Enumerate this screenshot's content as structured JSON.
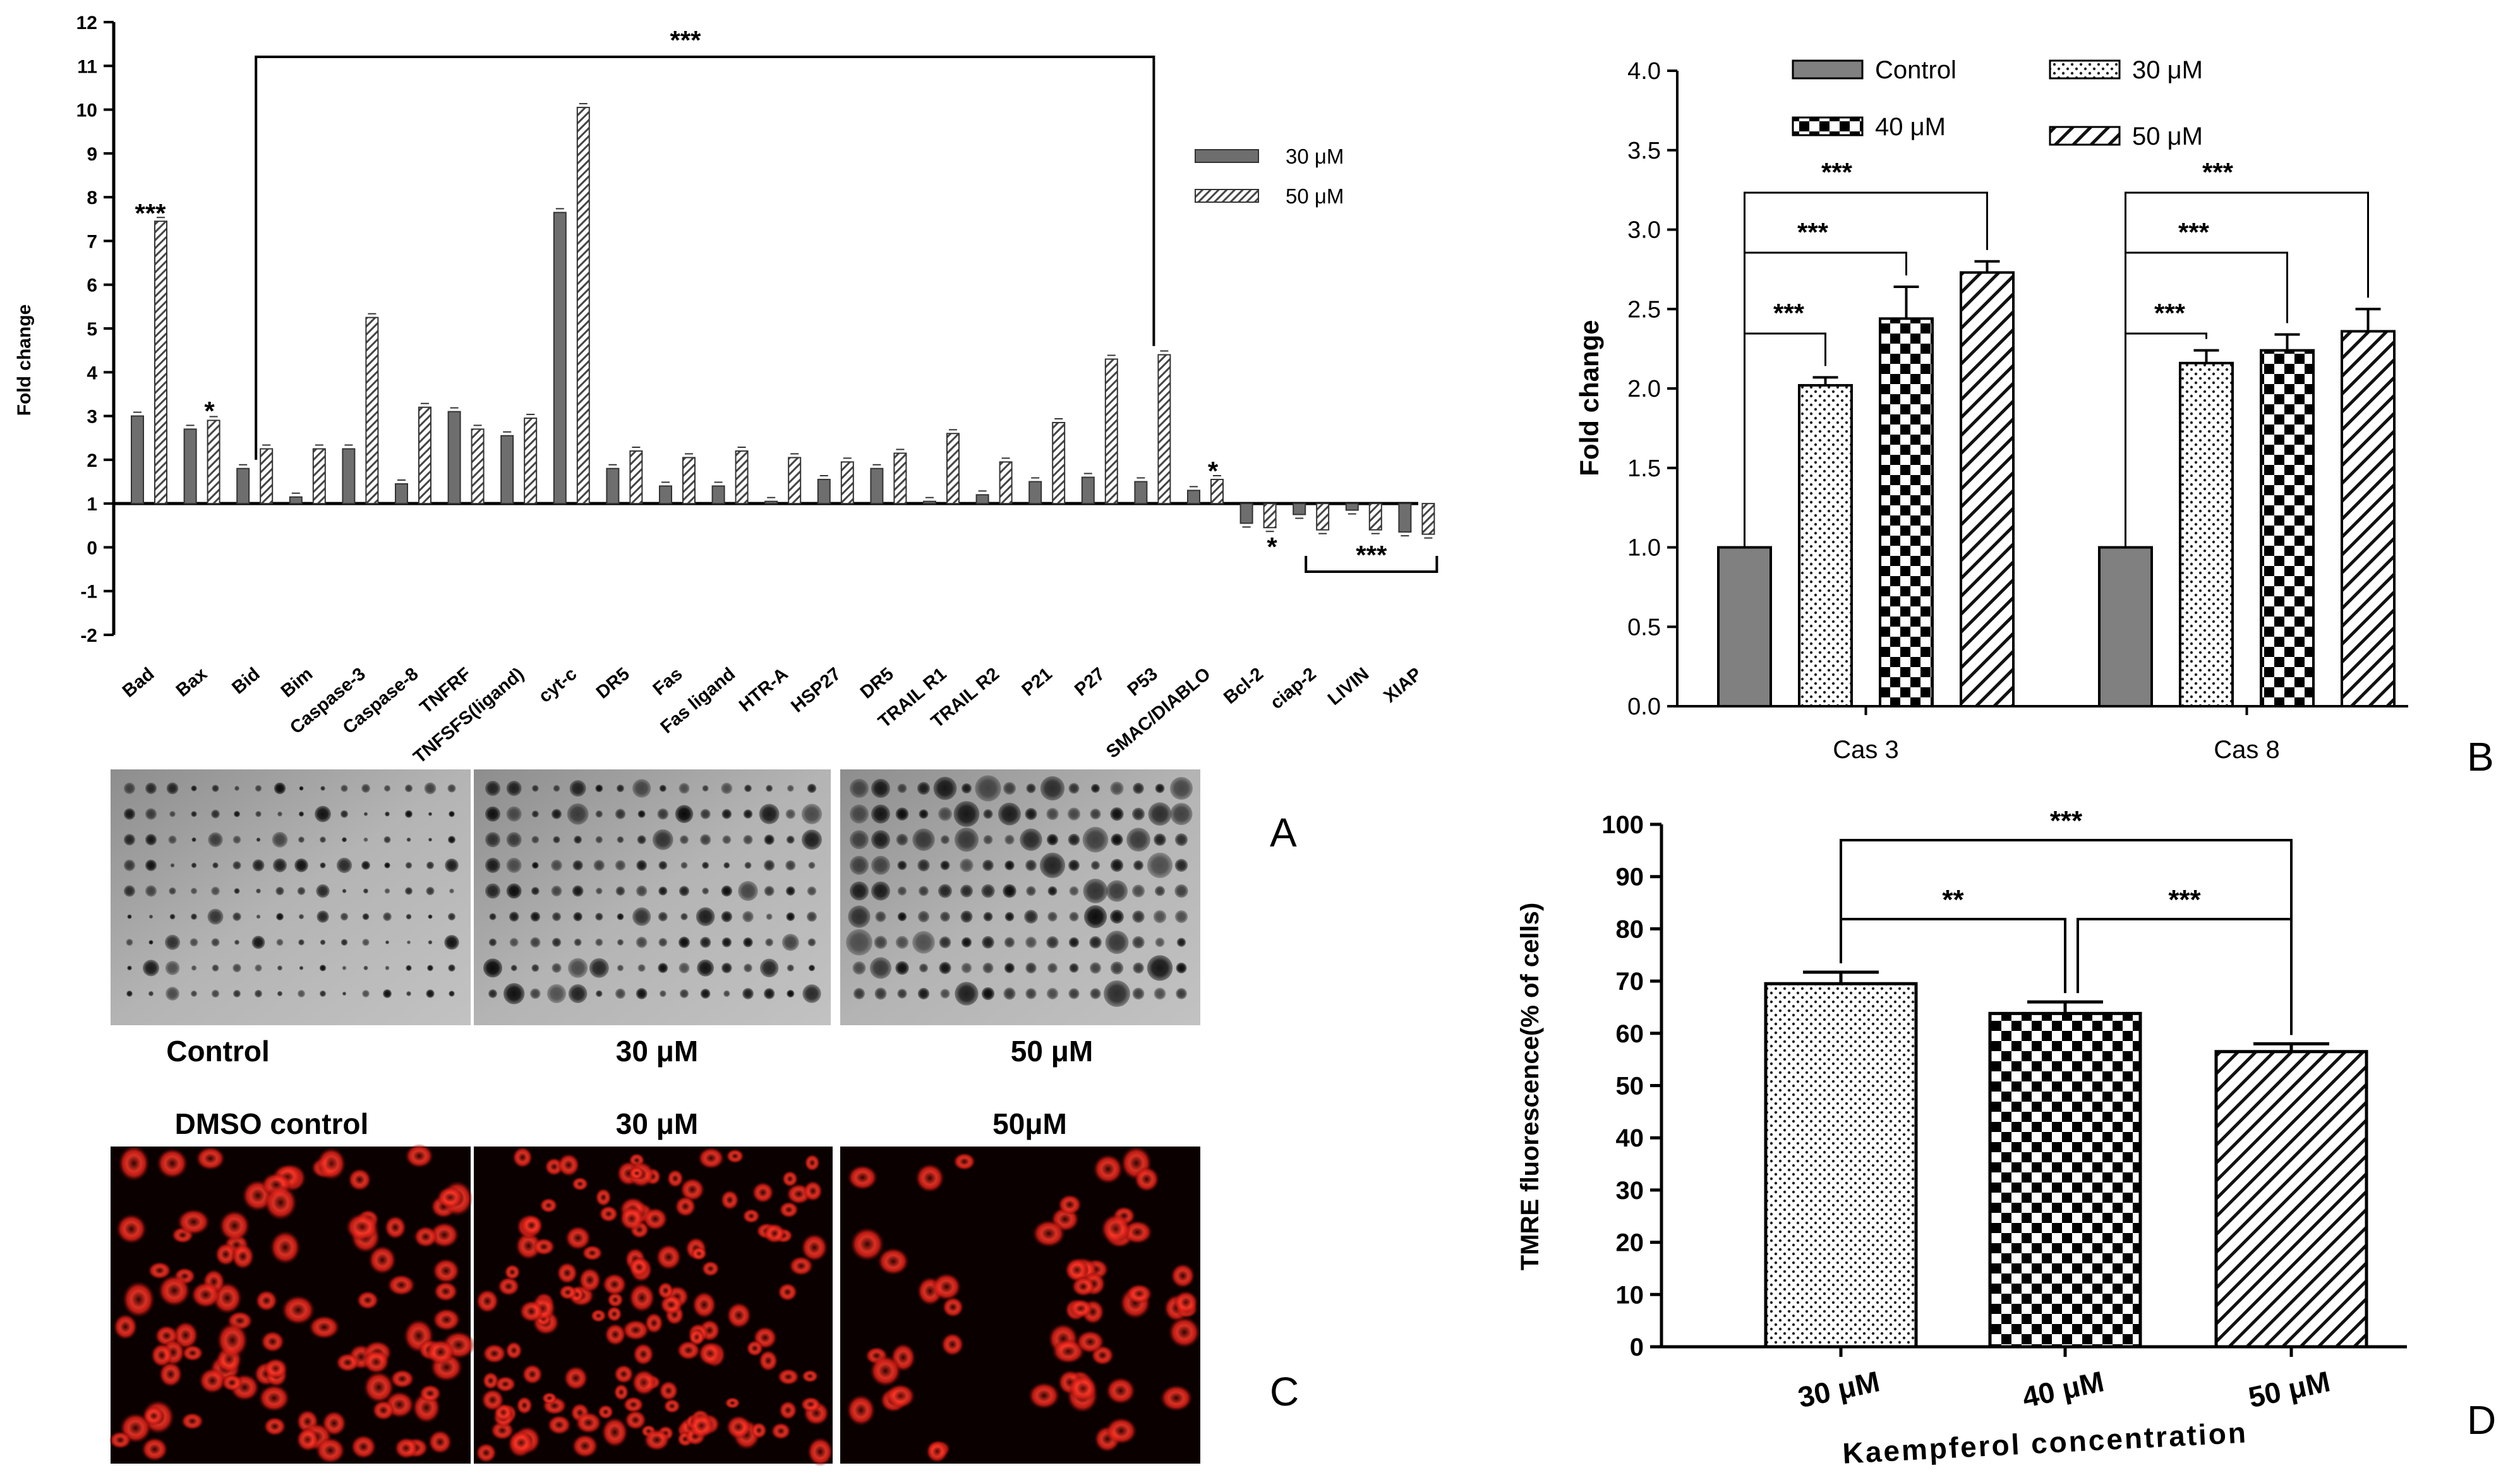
{
  "panel_letters": [
    "A",
    "B",
    "C",
    "D"
  ],
  "blot_labels": [
    "Control",
    "30 μM",
    "50 μM"
  ],
  "fluor_labels": [
    "DMSO control",
    "30 μM",
    "50μM"
  ],
  "chart_data": [
    {
      "id": "A",
      "type": "bar",
      "ylabel": "Fold change",
      "ylim": [
        -2,
        12
      ],
      "yticks": [
        -2,
        -1,
        0,
        1,
        2,
        3,
        4,
        5,
        6,
        7,
        8,
        9,
        10,
        11,
        12
      ],
      "baseline": 1,
      "categories": [
        "Bad",
        "Bax",
        "Bid",
        "Bim",
        "Caspase-3",
        "Caspase-8",
        "TNFRF",
        "TNFSFS(ligand)",
        "cyt-c",
        "DR5",
        "Fas",
        "Fas ligand",
        "HTR-A",
        "HSP27",
        "DR5",
        "TRAIL R1",
        "TRAIL R2",
        "P21",
        "P27",
        "P53",
        "SMAC/DIABLO",
        "Bcl-2",
        "ciap-2",
        "LIVIN",
        "XIAP"
      ],
      "series": [
        {
          "name": "30 μM",
          "values": [
            3.0,
            2.7,
            1.8,
            1.15,
            2.25,
            1.45,
            3.1,
            2.55,
            7.65,
            1.8,
            1.4,
            1.4,
            1.05,
            1.55,
            1.8,
            1.05,
            1.2,
            1.5,
            1.6,
            1.5,
            1.3,
            0.55,
            0.75,
            0.85,
            0.35
          ]
        },
        {
          "name": "50 μM",
          "values": [
            7.45,
            2.9,
            2.25,
            2.25,
            5.25,
            3.2,
            2.7,
            2.95,
            10.05,
            2.2,
            2.05,
            2.2,
            2.05,
            1.95,
            2.15,
            2.6,
            1.95,
            2.85,
            4.3,
            4.4,
            1.55,
            0.45,
            0.4,
            0.4,
            0.3
          ]
        }
      ],
      "annotations": [
        {
          "text": "***",
          "bracket": [
            "Bid",
            "P53"
          ]
        },
        {
          "text": "***",
          "over": "Bad"
        },
        {
          "text": "*",
          "over": "Bax"
        },
        {
          "text": "*",
          "over": "SMAC/DIABLO"
        },
        {
          "text": "*",
          "under": "Bcl-2"
        },
        {
          "text": "***",
          "bracket_below": [
            "ciap-2",
            "XIAP"
          ]
        }
      ]
    },
    {
      "id": "B",
      "type": "bar",
      "ylabel": "Fold change",
      "ylim": [
        0,
        4
      ],
      "yticks": [
        "0.0",
        "0.5",
        "1.0",
        "1.5",
        "2.0",
        "2.5",
        "3.0",
        "3.5",
        "4.0"
      ],
      "categories": [
        "Cas 3",
        "Cas 8"
      ],
      "legend": "top",
      "series": [
        {
          "name": "Control",
          "values": [
            1.0,
            1.0
          ],
          "errors": [
            0,
            0
          ],
          "pattern": "solid-gray"
        },
        {
          "name": "30 μM",
          "values": [
            2.02,
            2.16
          ],
          "errors": [
            0.05,
            0.08
          ],
          "pattern": "dots"
        },
        {
          "name": "40 μM",
          "values": [
            2.44,
            2.24
          ],
          "errors": [
            0.2,
            0.1
          ],
          "pattern": "checker"
        },
        {
          "name": "50 μM",
          "values": [
            2.73,
            2.36
          ],
          "errors": [
            0.07,
            0.14
          ],
          "pattern": "hatch"
        }
      ],
      "annotations": [
        "***",
        "***",
        "***",
        "***",
        "***",
        "***"
      ]
    },
    {
      "id": "D",
      "type": "bar",
      "ylabel": "TMRE fluorescence(% of cells)",
      "xlabel": "Kaempferol concentration",
      "ylim": [
        0,
        100
      ],
      "yticks": [
        "0",
        "10",
        "20",
        "30",
        "40",
        "50",
        "60",
        "70",
        "80",
        "90",
        "100"
      ],
      "categories": [
        "30 μM",
        "40 μM",
        "50 μM"
      ],
      "values": [
        69.5,
        63.8,
        56.5
      ],
      "errors": [
        2.2,
        2.2,
        1.5
      ],
      "annotations": [
        {
          "text": "**",
          "pair": [
            "30 μM",
            "40 μM"
          ]
        },
        {
          "text": "***",
          "pair": [
            "40 μM",
            "50 μM"
          ]
        },
        {
          "text": "***",
          "pair": [
            "30 μM",
            "50 μM"
          ]
        }
      ]
    }
  ],
  "colors": {
    "bar_dark": "#6e6e6e",
    "control_gray": "#808080",
    "fluor_red": "#e0231e",
    "blot_bg": "#a9a9a9"
  }
}
